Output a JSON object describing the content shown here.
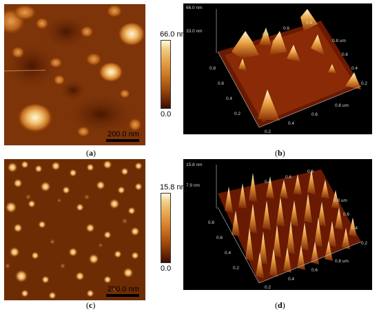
{
  "panels": {
    "a": {
      "caption": "a",
      "scale_bar": "200.0 nm",
      "color_bar": {
        "max": "66.0 nm",
        "min": "0.0"
      }
    },
    "b": {
      "caption": "b",
      "z_top": "66.0 nm",
      "z_mid": "33.0 nm",
      "x_ticks": [
        "0.2",
        "0.4",
        "0.6",
        "0.8 um"
      ],
      "y_ticks": [
        "0.2",
        "0.4",
        "0.6",
        "0.8 um"
      ],
      "back_ticks": [
        "0.4",
        "0.6",
        "0.8"
      ],
      "left_ticks": [
        "0.8",
        "0.6",
        "0.4",
        "0.2"
      ]
    },
    "c": {
      "caption": "c",
      "scale_bar": "200.0 nm",
      "color_bar": {
        "max": "15.8 nm",
        "min": "0.0"
      }
    },
    "d": {
      "caption": "d",
      "z_top": "15.8 nm",
      "z_mid": "7.9 nm",
      "x_ticks": [
        "0.2",
        "0.4",
        "0.6",
        "0.8 um"
      ],
      "y_ticks": [
        "0.2",
        "0.4",
        "0.6",
        "0.8 um"
      ],
      "back_ticks": [
        "0.4",
        "0.6",
        "0.8"
      ],
      "left_ticks": [
        "0.8",
        "0.6",
        "0.4",
        "0.2"
      ]
    }
  },
  "colors": {
    "afm_dark": "#3a0c00",
    "afm_mid": "#9e4b0f",
    "afm_light": "#fffbe0",
    "background_3d": "#000000"
  }
}
